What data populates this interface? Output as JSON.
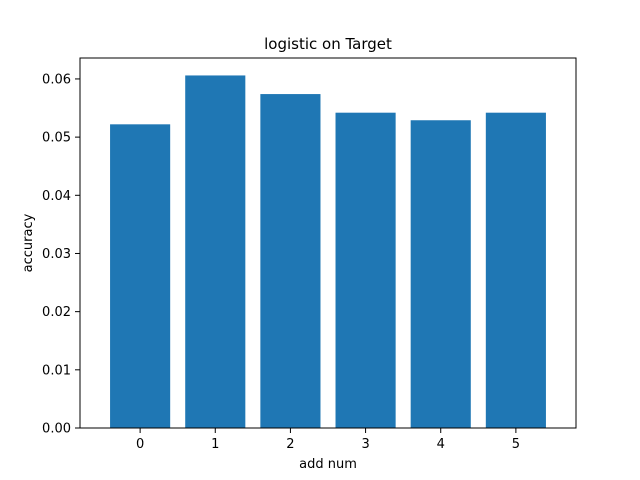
{
  "chart_data": {
    "type": "bar",
    "title": "logistic on Target",
    "xlabel": "add num",
    "ylabel": "accuracy",
    "categories": [
      "0",
      "1",
      "2",
      "3",
      "4",
      "5"
    ],
    "values": [
      0.0522,
      0.0606,
      0.0574,
      0.0542,
      0.0529,
      0.0542
    ],
    "ylim": [
      0,
      0.0636
    ],
    "yticks": [
      0.0,
      0.01,
      0.02,
      0.03,
      0.04,
      0.05,
      0.06
    ],
    "ytick_labels": [
      "0.00",
      "0.01",
      "0.02",
      "0.03",
      "0.04",
      "0.05",
      "0.06"
    ],
    "grid": false,
    "bar_color": "#1f77b4"
  }
}
